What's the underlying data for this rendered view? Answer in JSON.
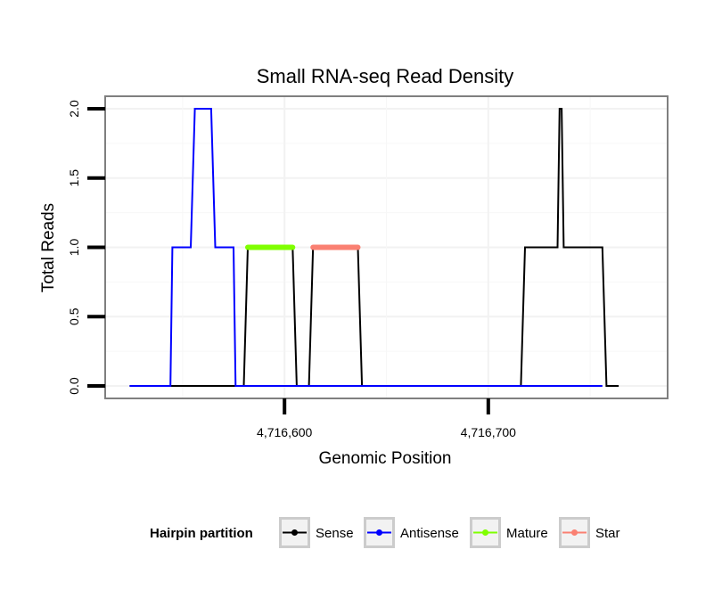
{
  "chart_data": {
    "type": "line",
    "title": "Small RNA-seq Read Density",
    "xlabel": "Genomic Position",
    "ylabel": "Total Reads",
    "xlim": [
      4716512,
      4716788
    ],
    "ylim": [
      -0.09,
      2.09
    ],
    "x_ticks": [
      {
        "value": 4716600,
        "label": "4,716,600"
      },
      {
        "value": 4716700,
        "label": "4,716,700"
      }
    ],
    "y_ticks": [
      {
        "value": 0,
        "label": "0.0"
      },
      {
        "value": 0.5,
        "label": "0.5"
      },
      {
        "value": 1,
        "label": "1.0"
      },
      {
        "value": 1.5,
        "label": "1.5"
      },
      {
        "value": 2,
        "label": "2.0"
      }
    ],
    "grid": true,
    "legend": {
      "title": "Hairpin partition",
      "position": "bottom",
      "entries": [
        {
          "name": "Sense",
          "color": "#000000"
        },
        {
          "name": "Antisense",
          "color": "#0000ff"
        },
        {
          "name": "Mature",
          "color": "#7fff00"
        },
        {
          "name": "Star",
          "color": "#fa8072"
        }
      ]
    },
    "series": [
      {
        "name": "Sense",
        "color": "#000000",
        "width": 2,
        "x": [
          4716524,
          4716580,
          4716582,
          4716604,
          4716606,
          4716612,
          4716614,
          4716636,
          4716638,
          4716716,
          4716718,
          4716734,
          4716735,
          4716736,
          4716737,
          4716738,
          4716740,
          4716756,
          4716758,
          4716764
        ],
        "y": [
          0,
          0,
          1,
          1,
          0,
          0,
          1,
          1,
          0,
          0,
          1,
          1,
          2,
          2,
          1,
          1,
          1,
          1,
          0,
          0
        ]
      },
      {
        "name": "Antisense",
        "color": "#0000ff",
        "width": 2,
        "x": [
          4716524,
          4716544,
          4716545,
          4716554,
          4716556,
          4716564,
          4716566,
          4716575,
          4716576,
          4716756
        ],
        "y": [
          0,
          0,
          1,
          1,
          2,
          2,
          1,
          1,
          0,
          0
        ]
      },
      {
        "name": "Mature",
        "color": "#7fff00",
        "width": 6,
        "x": [
          4716582,
          4716604
        ],
        "y": [
          1,
          1
        ]
      },
      {
        "name": "Star",
        "color": "#fa8072",
        "width": 6,
        "x": [
          4716614,
          4716636
        ],
        "y": [
          1,
          1
        ]
      }
    ]
  }
}
